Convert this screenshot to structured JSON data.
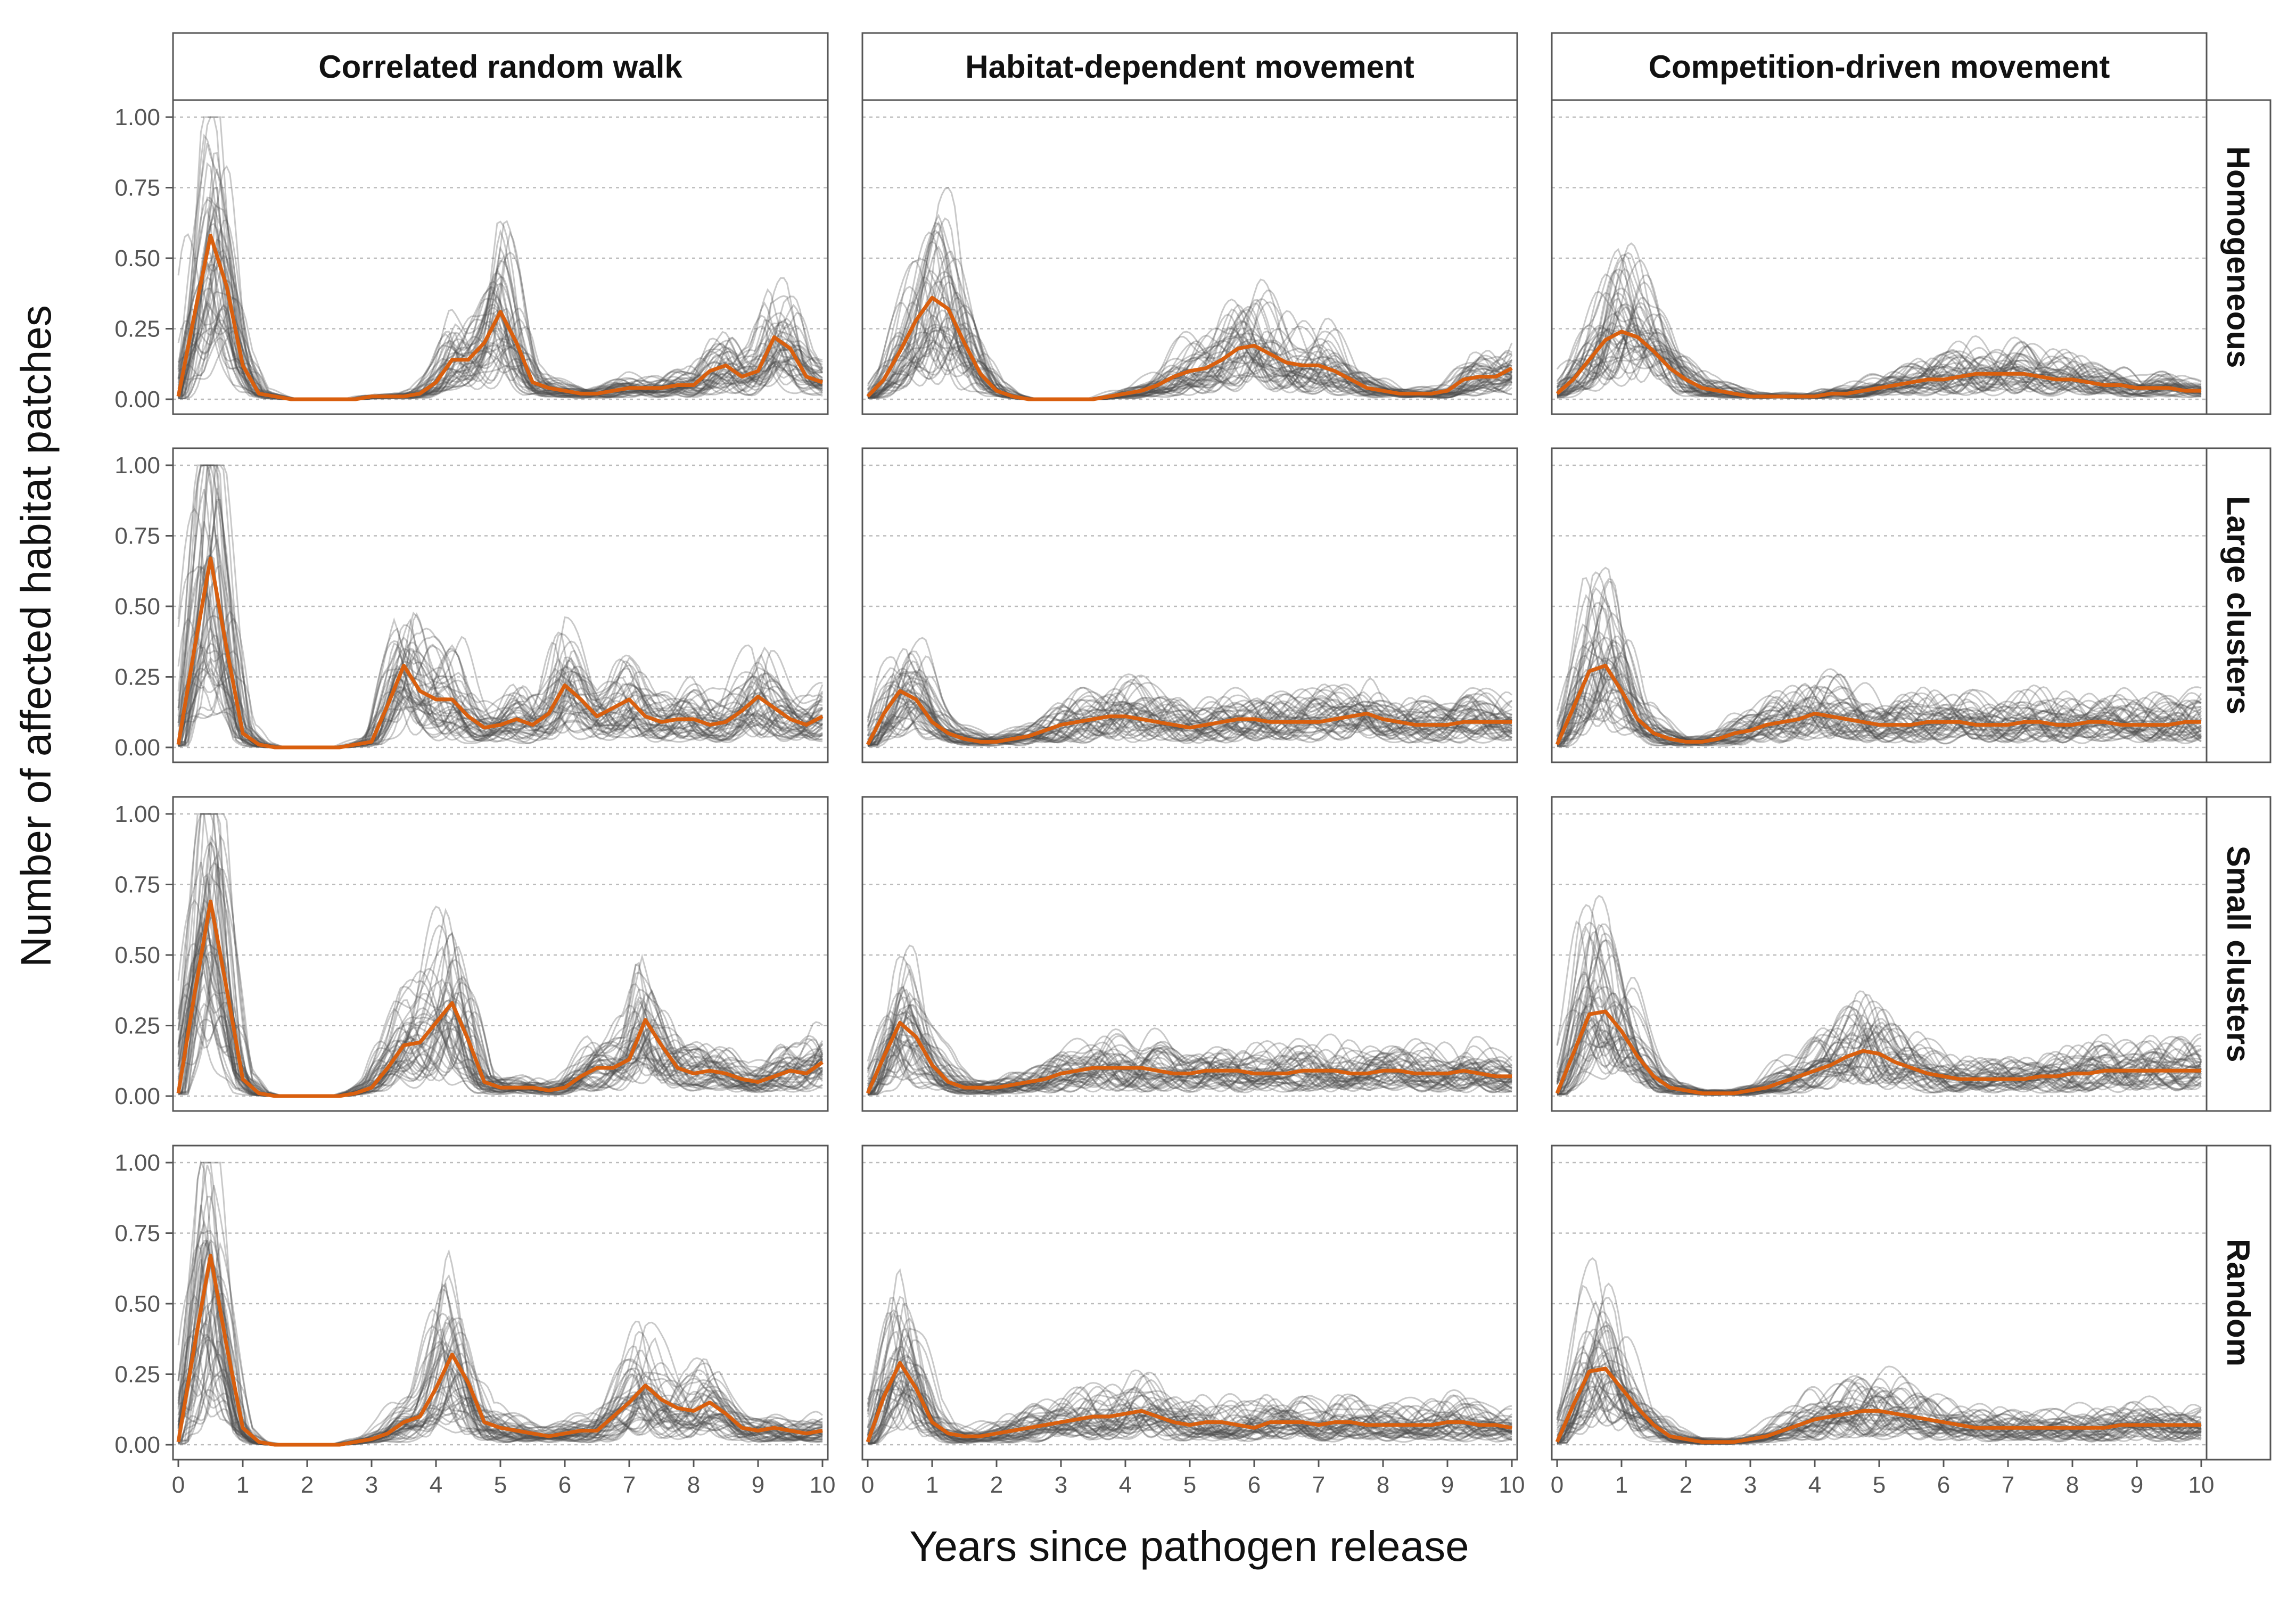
{
  "chart_data": {
    "type": "line",
    "layout": "facet-grid",
    "xlabel": "Years since pathogen release",
    "ylabel": "Number of affected habitat patches",
    "xlim": [
      0,
      10
    ],
    "ylim": [
      0,
      1
    ],
    "x_ticks": [
      0,
      1,
      2,
      3,
      4,
      5,
      6,
      7,
      8,
      9,
      10
    ],
    "y_ticks": [
      0,
      0.25,
      0.5,
      0.75,
      1
    ],
    "y_tick_labels": [
      "0.00",
      "0.25",
      "0.50",
      "0.75",
      "1.00"
    ],
    "grid": "horizontal dotted",
    "columns": [
      "Correlated random walk",
      "Habitat-dependent movement",
      "Competition-driven movement"
    ],
    "rows": [
      "Homogeneous",
      "Large clusters",
      "Small clusters",
      "Random"
    ],
    "colors": {
      "mean_line": "#d95f0e",
      "replicate_lines": "#4d4d4d",
      "panel_border": "#555555",
      "gridline": "#bbbbbb",
      "strip_background": "#ffffff"
    },
    "x": [
      0,
      0.25,
      0.5,
      0.75,
      1,
      1.25,
      1.5,
      1.75,
      2,
      2.25,
      2.5,
      2.75,
      3,
      3.25,
      3.5,
      3.75,
      4,
      4.25,
      4.5,
      4.75,
      5,
      5.25,
      5.5,
      5.75,
      6,
      6.25,
      6.5,
      6.75,
      7,
      7.25,
      7.5,
      7.75,
      8,
      8.25,
      8.5,
      8.75,
      9,
      9.25,
      9.5,
      9.75,
      10
    ],
    "panels": [
      {
        "column": "Correlated random walk",
        "row": "Homogeneous",
        "mean": [
          0.01,
          0.3,
          0.58,
          0.4,
          0.12,
          0.02,
          0.01,
          0,
          0,
          0,
          0,
          0,
          0.01,
          0.01,
          0.01,
          0.02,
          0.06,
          0.14,
          0.14,
          0.2,
          0.31,
          0.2,
          0.06,
          0.04,
          0.03,
          0.02,
          0.02,
          0.03,
          0.04,
          0.04,
          0.04,
          0.05,
          0.05,
          0.1,
          0.12,
          0.08,
          0.1,
          0.22,
          0.18,
          0.08,
          0.06
        ]
      },
      {
        "column": "Habitat-dependent movement",
        "row": "Homogeneous",
        "mean": [
          0.01,
          0.07,
          0.17,
          0.28,
          0.36,
          0.32,
          0.2,
          0.09,
          0.03,
          0.01,
          0,
          0,
          0,
          0,
          0,
          0.01,
          0.02,
          0.03,
          0.05,
          0.08,
          0.1,
          0.11,
          0.14,
          0.18,
          0.19,
          0.16,
          0.13,
          0.12,
          0.12,
          0.1,
          0.07,
          0.04,
          0.03,
          0.02,
          0.02,
          0.02,
          0.03,
          0.07,
          0.08,
          0.08,
          0.11
        ]
      },
      {
        "column": "Competition-driven movement",
        "row": "Homogeneous",
        "mean": [
          0.02,
          0.07,
          0.14,
          0.21,
          0.24,
          0.22,
          0.17,
          0.11,
          0.07,
          0.04,
          0.03,
          0.02,
          0.01,
          0.01,
          0.01,
          0.01,
          0.01,
          0.02,
          0.02,
          0.03,
          0.04,
          0.05,
          0.06,
          0.07,
          0.07,
          0.08,
          0.09,
          0.09,
          0.09,
          0.09,
          0.08,
          0.07,
          0.07,
          0.06,
          0.05,
          0.05,
          0.04,
          0.04,
          0.04,
          0.03,
          0.03
        ]
      },
      {
        "column": "Correlated random walk",
        "row": "Large clusters",
        "mean": [
          0.01,
          0.35,
          0.67,
          0.35,
          0.05,
          0.01,
          0,
          0,
          0,
          0,
          0,
          0.01,
          0.02,
          0.15,
          0.29,
          0.2,
          0.17,
          0.17,
          0.11,
          0.07,
          0.08,
          0.1,
          0.08,
          0.12,
          0.22,
          0.17,
          0.11,
          0.14,
          0.17,
          0.11,
          0.09,
          0.1,
          0.1,
          0.08,
          0.09,
          0.13,
          0.18,
          0.14,
          0.1,
          0.08,
          0.11
        ]
      },
      {
        "column": "Habitat-dependent movement",
        "row": "Large clusters",
        "mean": [
          0.01,
          0.12,
          0.2,
          0.17,
          0.09,
          0.05,
          0.03,
          0.02,
          0.02,
          0.03,
          0.04,
          0.06,
          0.08,
          0.09,
          0.1,
          0.11,
          0.11,
          0.1,
          0.09,
          0.08,
          0.07,
          0.08,
          0.09,
          0.1,
          0.1,
          0.09,
          0.09,
          0.09,
          0.09,
          0.1,
          0.11,
          0.12,
          0.1,
          0.09,
          0.08,
          0.08,
          0.08,
          0.09,
          0.09,
          0.09,
          0.09
        ]
      },
      {
        "column": "Competition-driven movement",
        "row": "Large clusters",
        "mean": [
          0.01,
          0.14,
          0.27,
          0.29,
          0.2,
          0.1,
          0.05,
          0.03,
          0.02,
          0.02,
          0.03,
          0.05,
          0.06,
          0.08,
          0.09,
          0.1,
          0.12,
          0.11,
          0.1,
          0.09,
          0.08,
          0.08,
          0.08,
          0.09,
          0.09,
          0.09,
          0.08,
          0.08,
          0.08,
          0.09,
          0.09,
          0.08,
          0.08,
          0.09,
          0.09,
          0.08,
          0.08,
          0.08,
          0.08,
          0.09,
          0.09
        ]
      },
      {
        "column": "Correlated random walk",
        "row": "Small clusters",
        "mean": [
          0.01,
          0.36,
          0.69,
          0.38,
          0.06,
          0.01,
          0,
          0,
          0,
          0,
          0,
          0.01,
          0.03,
          0.1,
          0.18,
          0.19,
          0.26,
          0.33,
          0.2,
          0.05,
          0.03,
          0.03,
          0.03,
          0.02,
          0.03,
          0.07,
          0.1,
          0.1,
          0.13,
          0.27,
          0.18,
          0.1,
          0.08,
          0.09,
          0.08,
          0.06,
          0.05,
          0.07,
          0.09,
          0.08,
          0.12
        ]
      },
      {
        "column": "Habitat-dependent movement",
        "row": "Small clusters",
        "mean": [
          0.01,
          0.14,
          0.26,
          0.21,
          0.11,
          0.05,
          0.03,
          0.03,
          0.03,
          0.04,
          0.05,
          0.06,
          0.08,
          0.09,
          0.1,
          0.1,
          0.1,
          0.1,
          0.09,
          0.08,
          0.08,
          0.09,
          0.09,
          0.09,
          0.08,
          0.08,
          0.08,
          0.09,
          0.09,
          0.09,
          0.08,
          0.08,
          0.09,
          0.09,
          0.08,
          0.08,
          0.08,
          0.09,
          0.08,
          0.07,
          0.07
        ]
      },
      {
        "column": "Competition-driven movement",
        "row": "Small clusters",
        "mean": [
          0.01,
          0.15,
          0.29,
          0.3,
          0.23,
          0.14,
          0.07,
          0.03,
          0.02,
          0.01,
          0.01,
          0.01,
          0.02,
          0.03,
          0.05,
          0.07,
          0.09,
          0.11,
          0.14,
          0.16,
          0.15,
          0.12,
          0.1,
          0.08,
          0.07,
          0.06,
          0.06,
          0.06,
          0.06,
          0.06,
          0.07,
          0.07,
          0.08,
          0.08,
          0.09,
          0.09,
          0.09,
          0.09,
          0.09,
          0.09,
          0.09
        ]
      },
      {
        "column": "Correlated random walk",
        "row": "Random",
        "mean": [
          0.01,
          0.35,
          0.67,
          0.35,
          0.06,
          0.01,
          0,
          0,
          0,
          0,
          0,
          0.01,
          0.02,
          0.04,
          0.08,
          0.1,
          0.2,
          0.32,
          0.22,
          0.08,
          0.06,
          0.05,
          0.04,
          0.03,
          0.04,
          0.05,
          0.05,
          0.1,
          0.15,
          0.21,
          0.16,
          0.13,
          0.12,
          0.15,
          0.11,
          0.06,
          0.05,
          0.06,
          0.05,
          0.04,
          0.05
        ]
      },
      {
        "column": "Habitat-dependent movement",
        "row": "Random",
        "mean": [
          0.01,
          0.17,
          0.29,
          0.2,
          0.08,
          0.04,
          0.03,
          0.03,
          0.04,
          0.05,
          0.06,
          0.07,
          0.08,
          0.09,
          0.1,
          0.1,
          0.11,
          0.12,
          0.1,
          0.08,
          0.07,
          0.08,
          0.08,
          0.07,
          0.06,
          0.08,
          0.08,
          0.08,
          0.07,
          0.08,
          0.08,
          0.07,
          0.07,
          0.07,
          0.07,
          0.07,
          0.08,
          0.08,
          0.07,
          0.07,
          0.06
        ]
      },
      {
        "column": "Competition-driven movement",
        "row": "Random",
        "mean": [
          0.01,
          0.14,
          0.26,
          0.27,
          0.2,
          0.13,
          0.07,
          0.03,
          0.02,
          0.01,
          0.01,
          0.01,
          0.02,
          0.03,
          0.05,
          0.07,
          0.09,
          0.1,
          0.11,
          0.12,
          0.12,
          0.11,
          0.1,
          0.09,
          0.08,
          0.07,
          0.06,
          0.06,
          0.06,
          0.06,
          0.06,
          0.06,
          0.06,
          0.06,
          0.06,
          0.07,
          0.07,
          0.07,
          0.07,
          0.07,
          0.07
        ]
      }
    ]
  }
}
